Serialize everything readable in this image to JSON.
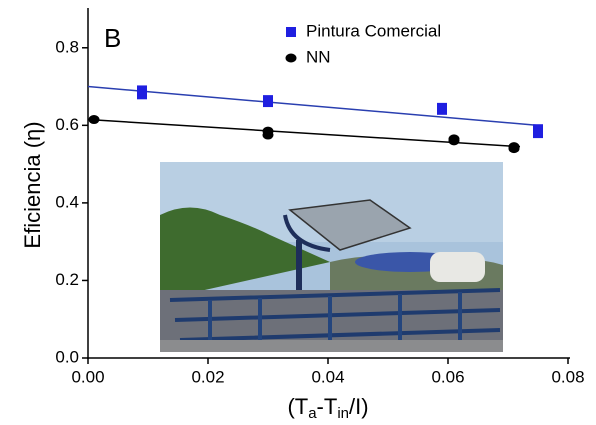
{
  "chart_data": {
    "type": "scatter",
    "panel_label": "B",
    "ylabel": "Eficiencia (η)",
    "xlabel_parts": [
      "(T",
      "a",
      "-T",
      "in",
      "/I)"
    ],
    "xlim": [
      0,
      0.08
    ],
    "xticks": [
      {
        "value": 0,
        "label": "0.00"
      },
      {
        "value": 0.02,
        "label": "0.02"
      },
      {
        "value": 0.04,
        "label": "0.04"
      },
      {
        "value": 0.06,
        "label": "0.06"
      },
      {
        "value": 0.08,
        "label": "0.08"
      }
    ],
    "ylim": [
      0,
      0.9
    ],
    "yticks": [
      {
        "value": 0,
        "label": "0.0"
      },
      {
        "value": 0.2,
        "label": "0.2"
      },
      {
        "value": 0.4,
        "label": "0.4"
      },
      {
        "value": 0.6,
        "label": "0.6"
      },
      {
        "value": 0.8,
        "label": "0.8"
      }
    ],
    "legend": "top-right",
    "series": [
      {
        "name": "Pintura Comercial",
        "color": "#1f1fe0",
        "marker": "square",
        "x": [
          0.009,
          0.009,
          0.03,
          0.03,
          0.059,
          0.059,
          0.075,
          0.075
        ],
        "values": [
          0.69,
          0.68,
          0.665,
          0.66,
          0.645,
          0.64,
          0.59,
          0.58
        ],
        "fit": {
          "color": "#2a3fb0",
          "x": [
            0,
            0.075
          ],
          "values": [
            0.7,
            0.6
          ]
        }
      },
      {
        "name": "NN",
        "color": "#000000",
        "marker": "circle",
        "x": [
          0.001,
          0.03,
          0.03,
          0.061,
          0.061,
          0.071,
          0.071
        ],
        "values": [
          0.615,
          0.585,
          0.575,
          0.565,
          0.56,
          0.545,
          0.54
        ],
        "fit": {
          "color": "#000000",
          "x": [
            0,
            0.072
          ],
          "values": [
            0.615,
            0.545
          ]
        }
      }
    ]
  }
}
